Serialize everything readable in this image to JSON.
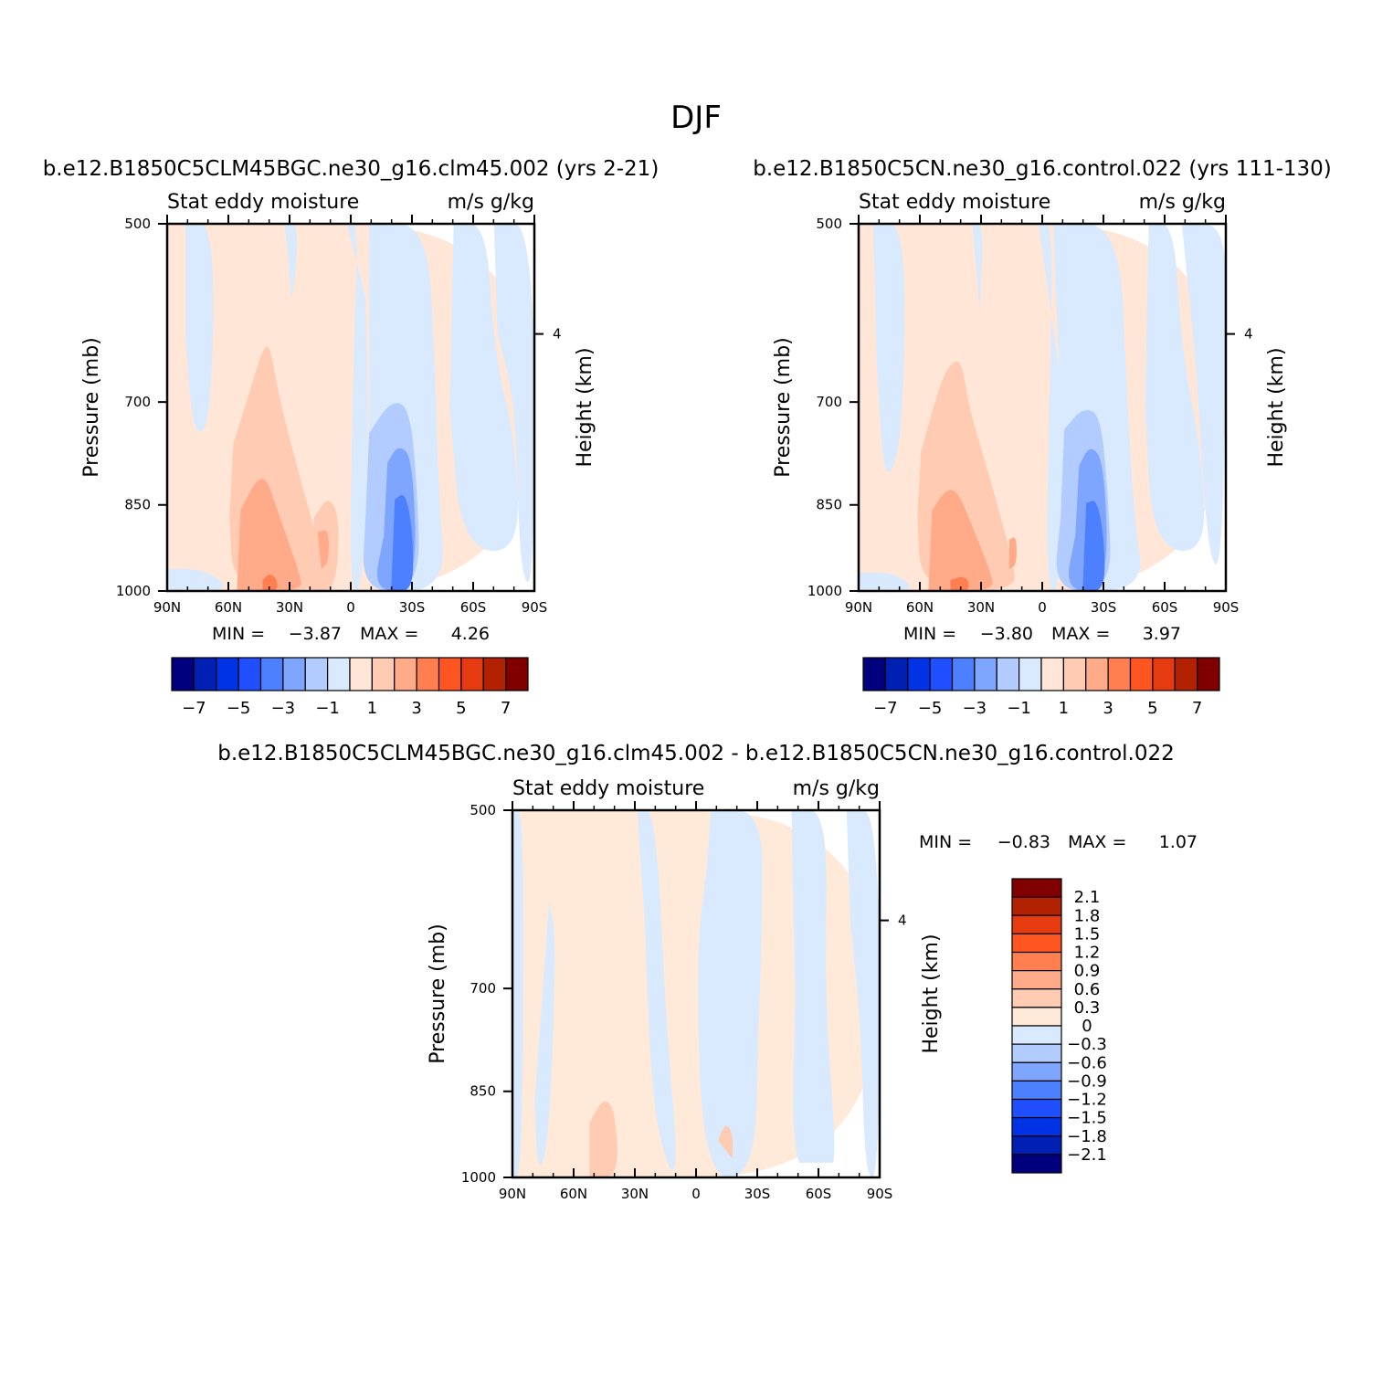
{
  "figure": {
    "title": "DJF",
    "colors": {
      "levels_main": [
        "#00007f",
        "#0020b4",
        "#0033e6",
        "#1f4fff",
        "#4d80ff",
        "#7fa6ff",
        "#b3ccff",
        "#d9eaff",
        "#ffe6d6",
        "#ffcbb3",
        "#ffab8a",
        "#ff7f50",
        "#ff5520",
        "#e63a10",
        "#b32200",
        "#800000"
      ],
      "levels_diff": [
        "#00007f",
        "#0020b4",
        "#0033e6",
        "#1f4fff",
        "#4d80ff",
        "#7fa6ff",
        "#b3ccff",
        "#d9eaff",
        "#ffe9d9",
        "#ffcbb3",
        "#ffab8a",
        "#ff7f50",
        "#ff5520",
        "#e63a10",
        "#b32200",
        "#800000"
      ]
    }
  },
  "chart_data": [
    {
      "type": "heatmap",
      "title": "b.e12.B1850C5CLM45BGC.ne30_g16.clm45.002 (yrs 2-21)",
      "left_title": "Stat eddy moisture",
      "right_title": "m/s  g/kg",
      "xlabel": "",
      "ylabel": "Pressure (mb)",
      "y2label": "Height (km)",
      "x_ticks": [
        "90N",
        "60N",
        "30N",
        "0",
        "30S",
        "60S",
        "90S"
      ],
      "y_ticks": [
        "500",
        "700",
        "850",
        "1000"
      ],
      "y2_ticks": [
        "4"
      ],
      "ylim": [
        1000,
        500
      ],
      "min_label": "MIN =",
      "min_value": "-3.87",
      "max_label": "MAX =",
      "max_value": "4.26",
      "colorbar_labels": [
        "-7",
        "-5",
        "-3",
        "-1",
        "1",
        "3",
        "5",
        "7"
      ],
      "colorbar_orientation": "horizontal"
    },
    {
      "type": "heatmap",
      "title": "b.e12.B1850C5CN.ne30_g16.control.022 (yrs 111-130)",
      "left_title": "Stat eddy moisture",
      "right_title": "m/s  g/kg",
      "xlabel": "",
      "ylabel": "Pressure (mb)",
      "y2label": "Height (km)",
      "x_ticks": [
        "90N",
        "60N",
        "30N",
        "0",
        "30S",
        "60S",
        "90S"
      ],
      "y_ticks": [
        "500",
        "700",
        "850",
        "1000"
      ],
      "y2_ticks": [
        "4"
      ],
      "ylim": [
        1000,
        500
      ],
      "min_label": "MIN =",
      "min_value": "-3.80",
      "max_label": "MAX =",
      "max_value": "3.97",
      "colorbar_labels": [
        "-7",
        "-5",
        "-3",
        "-1",
        "1",
        "3",
        "5",
        "7"
      ],
      "colorbar_orientation": "horizontal"
    },
    {
      "type": "heatmap",
      "title": "b.e12.B1850C5CLM45BGC.ne30_g16.clm45.002 - b.e12.B1850C5CN.ne30_g16.control.022",
      "left_title": "Stat eddy moisture",
      "right_title": "m/s  g/kg",
      "xlabel": "",
      "ylabel": "Pressure (mb)",
      "y2label": "Height (km)",
      "x_ticks": [
        "90N",
        "60N",
        "30N",
        "0",
        "30S",
        "60S",
        "90S"
      ],
      "y_ticks": [
        "500",
        "700",
        "850",
        "1000"
      ],
      "y2_ticks": [
        "4"
      ],
      "ylim": [
        1000,
        500
      ],
      "min_label": "MIN =",
      "min_value": "-0.83",
      "max_label": "MAX =",
      "max_value": "1.07",
      "colorbar_labels": [
        "2.1",
        "1.8",
        "1.5",
        "1.2",
        "0.9",
        "0.6",
        "0.3",
        "0",
        "-0.3",
        "-0.6",
        "-0.9",
        "-1.2",
        "-1.5",
        "-1.8",
        "-2.1"
      ],
      "colorbar_orientation": "vertical"
    }
  ]
}
